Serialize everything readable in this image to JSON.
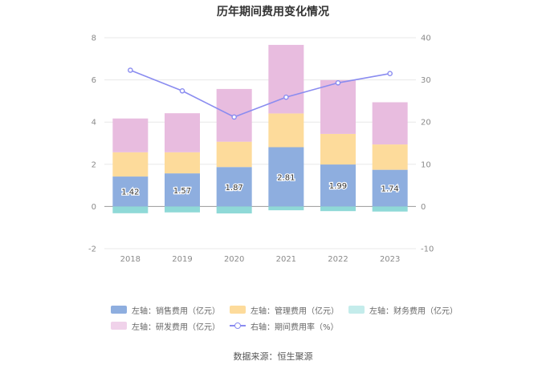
{
  "chart_data": {
    "type": "bar",
    "stacked": true,
    "title": "历年期间费用变化情况",
    "categories": [
      "2018",
      "2019",
      "2020",
      "2021",
      "2022",
      "2023"
    ],
    "left_axis": {
      "ylim": [
        -2,
        8
      ],
      "ticks": [
        "-2",
        "0",
        "2",
        "4",
        "6",
        "8"
      ]
    },
    "right_axis": {
      "ylim": [
        -10,
        40
      ],
      "ticks": [
        "-10",
        "0",
        "10",
        "20",
        "30",
        "40"
      ]
    },
    "series": [
      {
        "name": "左轴：销售费用（亿元）",
        "axis": "left",
        "kind": "bar",
        "color": "#8eaedf",
        "values": [
          1.42,
          1.57,
          1.87,
          2.81,
          1.99,
          1.74
        ],
        "labels": [
          "1.42",
          "1.57",
          "1.87",
          "2.81",
          "1.99",
          "1.74"
        ]
      },
      {
        "name": "左轴：管理费用（亿元）",
        "axis": "left",
        "kind": "bar",
        "color": "#fddb9b",
        "values": [
          1.15,
          1.0,
          1.2,
          1.6,
          1.45,
          1.2
        ]
      },
      {
        "name": "左轴：财务费用（亿元）",
        "axis": "left",
        "kind": "bar",
        "color": "#8fd9d7",
        "values": [
          -0.32,
          -0.28,
          -0.33,
          -0.18,
          -0.22,
          -0.24
        ]
      },
      {
        "name": "左轴：研发费用（亿元）",
        "axis": "left",
        "kind": "bar",
        "color": "#e8bcdf",
        "values": [
          1.6,
          1.85,
          2.5,
          3.25,
          2.55,
          2.0
        ]
      },
      {
        "name": "右轴：期间费用率（%）",
        "axis": "right",
        "kind": "line",
        "color": "#8a8cf0",
        "values": [
          32.3,
          27.4,
          21.2,
          25.9,
          29.3,
          31.5
        ]
      }
    ],
    "grid": true,
    "legend_position": "bottom"
  },
  "source_text": "数据来源：恒生聚源"
}
